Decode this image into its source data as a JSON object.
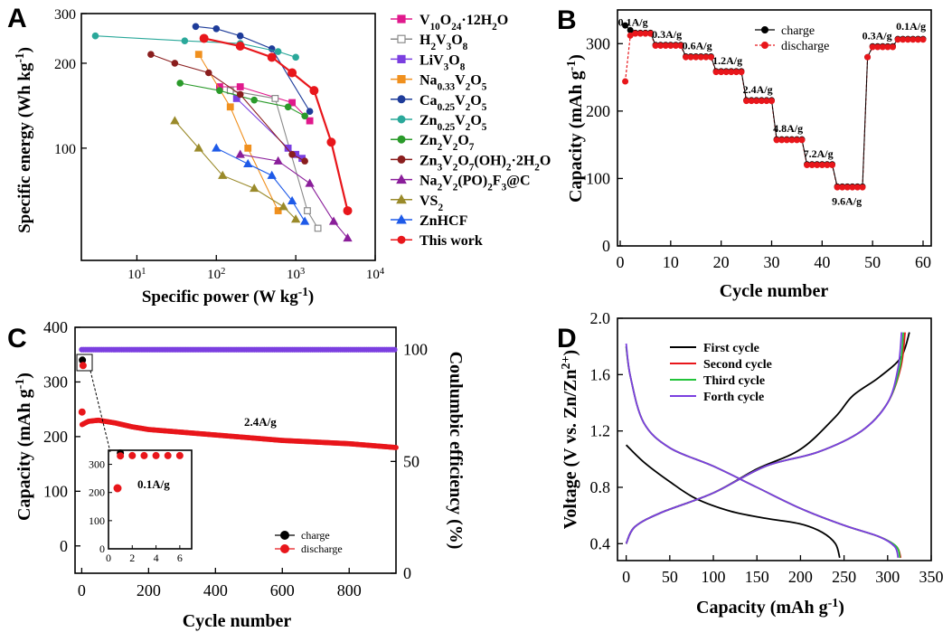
{
  "colors": {
    "red": "#e8161b",
    "black": "#000000",
    "purple": "#7b3fe0",
    "green": "#22c33a",
    "orange_red": "#e84a2a"
  },
  "chart_data": [
    {
      "panel": "A",
      "type": "scatter",
      "xscale": "log",
      "yscale": "log",
      "xlabel": "Specific power (W kg⁻¹)",
      "ylabel": "Specific energy (Wh kg⁻¹)",
      "xlim": [
        2,
        10000
      ],
      "ylim": [
        40,
        300
      ],
      "x_ticks": [
        10,
        100,
        1000,
        10000
      ],
      "x_tick_labels": [
        "10¹",
        "10²",
        "10³",
        "10⁴"
      ],
      "y_ticks": [
        100,
        200,
        300
      ],
      "y_tick_labels": [
        "100",
        "200",
        "300"
      ],
      "legend_position": "right",
      "series": [
        {
          "name": "V₁₀O₂₄·12H₂O",
          "color": "#e0198c",
          "marker": "square",
          "points": [
            [
              110,
              165
            ],
            [
              200,
              165
            ],
            [
              900,
              145
            ],
            [
              1500,
              125
            ]
          ]
        },
        {
          "name": "H₂V₃O₈",
          "color": "#8a8a8a",
          "marker": "half-square",
          "points": [
            [
              150,
              160
            ],
            [
              550,
              150
            ],
            [
              1400,
              60
            ],
            [
              1900,
              52
            ]
          ]
        },
        {
          "name": "LiV₃O₈",
          "color": "#7b3fe0",
          "marker": "square",
          "points": [
            [
              180,
              150
            ],
            [
              800,
              100
            ],
            [
              1000,
              95
            ],
            [
              1200,
              92
            ]
          ]
        },
        {
          "name": "Na₀.₃₃V₂O₅",
          "color": "#f0901e",
          "marker": "square",
          "points": [
            [
              60,
              215
            ],
            [
              150,
              140
            ],
            [
              250,
              100
            ],
            [
              600,
              60
            ]
          ]
        },
        {
          "name": "Ca₀.₂₅V₂O₅",
          "color": "#1e3c9a",
          "marker": "circle",
          "points": [
            [
              55,
              270
            ],
            [
              100,
              265
            ],
            [
              200,
              250
            ],
            [
              500,
              225
            ],
            [
              1500,
              135
            ]
          ]
        },
        {
          "name": "Zn₀.₂₅V₂O₅",
          "color": "#2aa89a",
          "marker": "circle",
          "points": [
            [
              3,
              250
            ],
            [
              40,
              240
            ],
            [
              200,
              235
            ],
            [
              600,
              220
            ],
            [
              1000,
              210
            ]
          ]
        },
        {
          "name": "Zn₂V₂O₇",
          "color": "#2a9a2a",
          "marker": "circle",
          "points": [
            [
              35,
              170
            ],
            [
              110,
              160
            ],
            [
              300,
              148
            ],
            [
              800,
              140
            ],
            [
              1300,
              130
            ]
          ]
        },
        {
          "name": "Zn₃V₂O₇(OH)₂·2H₂O",
          "color": "#8a1e1e",
          "marker": "circle",
          "points": [
            [
              15,
              215
            ],
            [
              30,
              200
            ],
            [
              80,
              185
            ],
            [
              200,
              155
            ],
            [
              900,
              95
            ],
            [
              1300,
              90
            ]
          ]
        },
        {
          "name": "Na₂V₂(PO)₂F₃@C",
          "color": "#8a1e9a",
          "marker": "triangle",
          "points": [
            [
              200,
              95
            ],
            [
              600,
              90
            ],
            [
              1500,
              75
            ],
            [
              3000,
              55
            ],
            [
              4500,
              48
            ]
          ]
        },
        {
          "name": "VS₂",
          "color": "#9a8a2a",
          "marker": "triangle",
          "points": [
            [
              30,
              125
            ],
            [
              60,
              100
            ],
            [
              120,
              80
            ],
            [
              300,
              72
            ],
            [
              700,
              62
            ],
            [
              1000,
              56
            ]
          ]
        },
        {
          "name": "ZnHCF",
          "color": "#1e5ae8",
          "marker": "triangle",
          "points": [
            [
              100,
              100
            ],
            [
              250,
              88
            ],
            [
              500,
              80
            ],
            [
              900,
              65
            ],
            [
              1300,
              55
            ]
          ]
        },
        {
          "name": "This work",
          "color": "#e8161b",
          "marker": "circle",
          "points": [
            [
              70,
              245
            ],
            [
              200,
              230
            ],
            [
              500,
              210
            ],
            [
              900,
              185
            ],
            [
              1700,
              160
            ],
            [
              2800,
              105
            ],
            [
              4500,
              60
            ]
          ]
        }
      ]
    },
    {
      "panel": "B",
      "type": "scatter",
      "xlabel": "Cycle number",
      "ylabel": "Capacity (mAh g⁻¹)",
      "xlim": [
        0,
        60
      ],
      "ylim": [
        0,
        350
      ],
      "x_ticks": [
        0,
        10,
        20,
        30,
        40,
        50,
        60
      ],
      "y_ticks": [
        0,
        100,
        200,
        300
      ],
      "legend_position": "top-right",
      "series": [
        {
          "name": "charge",
          "color": "#000000"
        },
        {
          "name": "discharge",
          "color": "#e8161b"
        }
      ],
      "rate_segments": [
        {
          "label": "0.1A/g",
          "start": 1,
          "end": 6,
          "value": 316
        },
        {
          "label": "0.3A/g",
          "start": 7,
          "end": 12,
          "value": 298
        },
        {
          "label": "0.6A/g",
          "start": 13,
          "end": 18,
          "value": 281
        },
        {
          "label": "1.2A/g",
          "start": 19,
          "end": 24,
          "value": 259
        },
        {
          "label": "2.4A/g",
          "start": 25,
          "end": 30,
          "value": 216
        },
        {
          "label": "4.8A/g",
          "start": 31,
          "end": 36,
          "value": 158
        },
        {
          "label": "7.2A/g",
          "start": 37,
          "end": 42,
          "value": 121
        },
        {
          "label": "9.6A/g",
          "start": 43,
          "end": 48,
          "value": 88
        },
        {
          "label": "0.3A/g",
          "start": 49,
          "end": 54,
          "value": 296
        },
        {
          "label": "0.1A/g",
          "start": 55,
          "end": 60,
          "value": 307
        }
      ],
      "first_cycle": {
        "charge": 327,
        "discharge": 244
      }
    },
    {
      "panel": "C",
      "type": "scatter",
      "xlabel": "Cycle number",
      "ylabel": "Capacity (mAh g⁻¹)",
      "y2label": "Coulumbic efficiency (%)",
      "xlim": [
        -20,
        940
      ],
      "ylim": [
        -50,
        400
      ],
      "y2lim": [
        0,
        110
      ],
      "x_ticks": [
        0,
        200,
        400,
        600,
        800
      ],
      "y_ticks": [
        0,
        100,
        200,
        300,
        400
      ],
      "y2_ticks": [
        0,
        50,
        100
      ],
      "annotation": "2.4A/g",
      "legend_position": "bottom-right",
      "series": [
        {
          "name": "charge",
          "color": "#000000"
        },
        {
          "name": "discharge",
          "color": "#e8161b"
        }
      ],
      "capacity_curve": {
        "x": [
          1,
          20,
          50,
          100,
          150,
          200,
          300,
          400,
          500,
          600,
          700,
          800,
          900,
          940
        ],
        "y": [
          222,
          228,
          230,
          225,
          218,
          213,
          208,
          203,
          198,
          193,
          190,
          187,
          182,
          180
        ]
      },
      "coulombic_efficiency": {
        "x": [
          0,
          940
        ],
        "y": [
          100,
          100
        ],
        "color": "#7b3fe0"
      },
      "inset": {
        "annotation": "0.1A/g",
        "xlim": [
          0,
          7
        ],
        "ylim": [
          0,
          350
        ],
        "x_ticks": [
          0,
          2,
          4,
          6
        ],
        "y_ticks": [
          0,
          100,
          200,
          300
        ],
        "charge": {
          "x": [
            1
          ],
          "y": [
            340
          ]
        },
        "discharge": {
          "x": [
            1,
            2,
            3,
            4,
            5,
            6
          ],
          "y": [
            330,
            331,
            331,
            331,
            331,
            331
          ]
        }
      }
    },
    {
      "panel": "D",
      "type": "line",
      "xlabel": "Capacity (mAh g⁻¹)",
      "ylabel": "Voltage (V vs. Zn/Zn²⁺)",
      "xlim": [
        -10,
        350
      ],
      "ylim": [
        0.28,
        2.0
      ],
      "x_ticks": [
        0,
        50,
        100,
        150,
        200,
        250,
        300,
        350
      ],
      "y_ticks": [
        0.4,
        0.8,
        1.2,
        1.6,
        2.0
      ],
      "y_tick_labels": [
        "0.4",
        "0.8",
        "1.2",
        "1.6",
        "2.0"
      ],
      "legend_position": "top-left",
      "series": [
        {
          "name": "First cycle",
          "color": "#000000",
          "discharge": [
            [
              0,
              1.1
            ],
            [
              20,
              0.98
            ],
            [
              50,
              0.84
            ],
            [
              80,
              0.72
            ],
            [
              120,
              0.63
            ],
            [
              160,
              0.58
            ],
            [
              200,
              0.54
            ],
            [
              225,
              0.48
            ],
            [
              240,
              0.4
            ],
            [
              245,
              0.3
            ]
          ],
          "charge": [
            [
              0,
              0.4
            ],
            [
              10,
              0.52
            ],
            [
              40,
              0.62
            ],
            [
              100,
              0.76
            ],
            [
              150,
              0.93
            ],
            [
              200,
              1.07
            ],
            [
              240,
              1.3
            ],
            [
              260,
              1.45
            ],
            [
              290,
              1.58
            ],
            [
              315,
              1.72
            ],
            [
              325,
              1.9
            ]
          ]
        },
        {
          "name": "Second cycle",
          "color": "#e8161b",
          "discharge": [
            [
              0,
              1.8
            ],
            [
              5,
              1.58
            ],
            [
              20,
              1.26
            ],
            [
              50,
              1.08
            ],
            [
              100,
              0.95
            ],
            [
              150,
              0.8
            ],
            [
              200,
              0.65
            ],
            [
              250,
              0.53
            ],
            [
              290,
              0.45
            ],
            [
              310,
              0.38
            ],
            [
              315,
              0.3
            ]
          ],
          "charge": [
            [
              0,
              0.4
            ],
            [
              10,
              0.52
            ],
            [
              40,
              0.62
            ],
            [
              100,
              0.76
            ],
            [
              160,
              0.95
            ],
            [
              220,
              1.05
            ],
            [
              270,
              1.2
            ],
            [
              300,
              1.4
            ],
            [
              315,
              1.65
            ],
            [
              320,
              1.9
            ]
          ]
        },
        {
          "name": "Third cycle",
          "color": "#22c33a",
          "discharge": [
            [
              0,
              1.8
            ],
            [
              5,
              1.58
            ],
            [
              20,
              1.26
            ],
            [
              50,
              1.08
            ],
            [
              100,
              0.95
            ],
            [
              150,
              0.8
            ],
            [
              200,
              0.65
            ],
            [
              250,
              0.53
            ],
            [
              290,
              0.45
            ],
            [
              310,
              0.38
            ],
            [
              314,
              0.3
            ]
          ],
          "charge": [
            [
              0,
              0.4
            ],
            [
              10,
              0.52
            ],
            [
              40,
              0.62
            ],
            [
              100,
              0.76
            ],
            [
              160,
              0.95
            ],
            [
              220,
              1.05
            ],
            [
              270,
              1.2
            ],
            [
              300,
              1.4
            ],
            [
              314,
              1.65
            ],
            [
              318,
              1.9
            ]
          ]
        },
        {
          "name": "Forth cycle",
          "color": "#7b3fe0",
          "discharge": [
            [
              0,
              1.82
            ],
            [
              5,
              1.58
            ],
            [
              20,
              1.26
            ],
            [
              50,
              1.08
            ],
            [
              100,
              0.95
            ],
            [
              150,
              0.8
            ],
            [
              200,
              0.65
            ],
            [
              250,
              0.53
            ],
            [
              290,
              0.45
            ],
            [
              308,
              0.38
            ],
            [
              312,
              0.3
            ]
          ],
          "charge": [
            [
              0,
              0.4
            ],
            [
              10,
              0.52
            ],
            [
              40,
              0.62
            ],
            [
              100,
              0.76
            ],
            [
              160,
              0.95
            ],
            [
              220,
              1.05
            ],
            [
              270,
              1.2
            ],
            [
              300,
              1.4
            ],
            [
              312,
              1.65
            ],
            [
              316,
              1.9
            ]
          ]
        }
      ]
    }
  ]
}
